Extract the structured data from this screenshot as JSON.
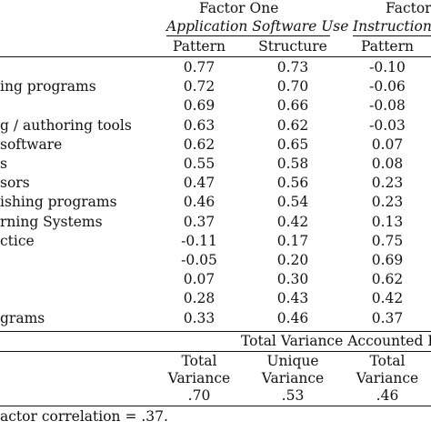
{
  "header": {
    "factor_one_title": "Factor One",
    "factor_one_subtitle": "Application Software Use",
    "factor_two_title": "Factor",
    "factor_two_subtitle": "Instructional",
    "col_pattern_1": "Pattern",
    "col_structure_1": "Structure",
    "col_pattern_2": "Pattern"
  },
  "rows": [
    {
      "label": "",
      "p1": "0.77",
      "s1": "0.73",
      "p2": "-0.10"
    },
    {
      "label": "ing programs",
      "p1": "0.72",
      "s1": "0.70",
      "p2": "-0.06"
    },
    {
      "label": "",
      "p1": "0.69",
      "s1": "0.66",
      "p2": "-0.08"
    },
    {
      "label": "g / authoring tools",
      "p1": "0.63",
      "s1": "0.62",
      "p2": "-0.03"
    },
    {
      "label": "software",
      "p1": "0.62",
      "s1": "0.65",
      "p2": "0.07"
    },
    {
      "label": "s",
      "p1": "0.55",
      "s1": "0.58",
      "p2": "0.08"
    },
    {
      "label": "sors",
      "p1": "0.47",
      "s1": "0.56",
      "p2": "0.23"
    },
    {
      "label": "ishing programs",
      "p1": "0.46",
      "s1": "0.54",
      "p2": "0.23"
    },
    {
      "label": "rning Systems",
      "p1": "0.37",
      "s1": "0.42",
      "p2": "0.13"
    },
    {
      "label": "ctice",
      "p1": "-0.11",
      "s1": "0.17",
      "p2": "0.75"
    },
    {
      "label": "",
      "p1": "-0.05",
      "s1": "0.20",
      "p2": "0.69"
    },
    {
      "label": "",
      "p1": "0.07",
      "s1": "0.30",
      "p2": "0.62"
    },
    {
      "label": "",
      "p1": "0.28",
      "s1": "0.43",
      "p2": "0.42"
    },
    {
      "label": "grams",
      "p1": "0.33",
      "s1": "0.46",
      "p2": "0.37"
    }
  ],
  "variance": {
    "title": "Total Variance Accounted F",
    "col1_line1": "Total",
    "col1_line2": "Variance",
    "col1_value": ".70",
    "col2_line1": "Unique",
    "col2_line2": "Variance",
    "col2_value": ".53",
    "col3_line1": "Total",
    "col3_line2": "Variance",
    "col3_value": ".46"
  },
  "footnote": "actor correlation = .37."
}
